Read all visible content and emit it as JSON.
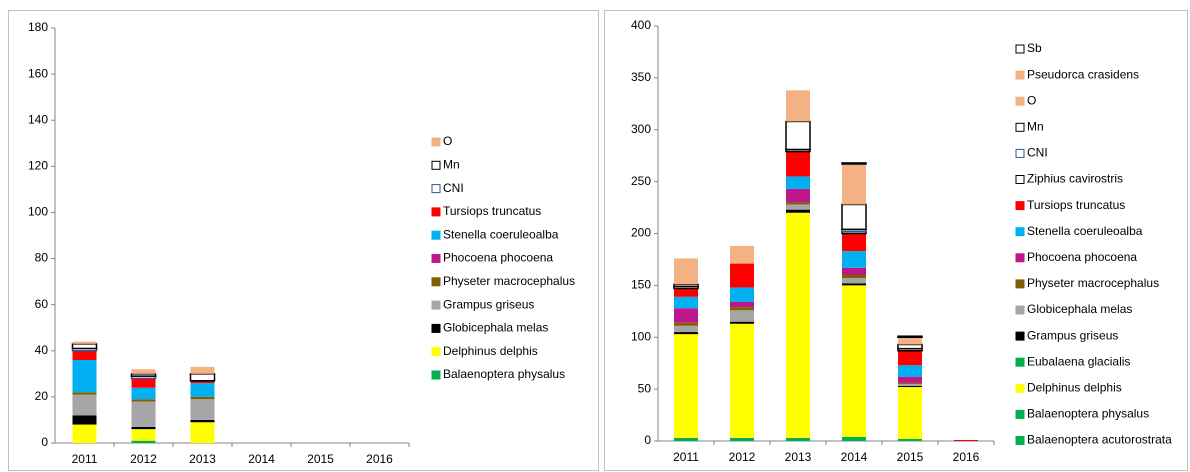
{
  "chart_data": [
    {
      "type": "stacked_bar",
      "categories": [
        "2011",
        "2012",
        "2013",
        "2014",
        "2015",
        "2016"
      ],
      "ylim": [
        0,
        180
      ],
      "yticks": [
        0,
        20,
        40,
        60,
        80,
        100,
        120,
        140,
        160,
        180
      ],
      "series": [
        {
          "name": "Balaenoptera physalus",
          "color": "#00b050",
          "values": [
            0,
            1,
            0,
            0,
            0,
            0
          ]
        },
        {
          "name": "Delphinus delphis",
          "color": "#ffff00",
          "values": [
            8,
            5,
            9,
            0,
            0,
            0
          ]
        },
        {
          "name": "Globicephala melas",
          "color": "#000000",
          "values": [
            4,
            1,
            1,
            0,
            0,
            0
          ]
        },
        {
          "name": "Grampus griseus",
          "color": "#a6a6a6",
          "values": [
            9,
            11,
            9,
            0,
            0,
            0
          ]
        },
        {
          "name": "Physeter macrocephalus",
          "color": "#7f6000",
          "values": [
            1,
            1,
            1,
            0,
            0,
            0
          ]
        },
        {
          "name": "Phocoena phocoena",
          "color": "#c0168c",
          "values": [
            0,
            0,
            0,
            0,
            0,
            0
          ]
        },
        {
          "name": "Stenella coeruleoalba",
          "color": "#00b0f0",
          "values": [
            14,
            5,
            6,
            0,
            0,
            0
          ]
        },
        {
          "name": "Tursiops truncatus",
          "color": "#ff0000",
          "values": [
            4,
            4,
            1,
            0,
            0,
            0
          ]
        },
        {
          "name": "CNI",
          "color": "#ffffff",
          "edgecolor": "#2f5597",
          "values": [
            1,
            1,
            0,
            0,
            0,
            0
          ]
        },
        {
          "name": "Mn",
          "color": "#ffffff",
          "edgecolor": "#000000",
          "values": [
            2,
            1,
            3,
            0,
            0,
            0
          ]
        },
        {
          "name": "O",
          "color": "#f4b183",
          "values": [
            1,
            2,
            3,
            0,
            0,
            0
          ]
        }
      ]
    },
    {
      "type": "stacked_bar",
      "categories": [
        "2011",
        "2012",
        "2013",
        "2014",
        "2015",
        "2016"
      ],
      "ylim": [
        0,
        400
      ],
      "yticks": [
        0,
        50,
        100,
        150,
        200,
        250,
        300,
        350,
        400
      ],
      "series": [
        {
          "name": "Balaenoptera acutorostrata",
          "color": "#00b050",
          "values": [
            3,
            3,
            3,
            4,
            2,
            0
          ]
        },
        {
          "name": "Balaenoptera physalus",
          "color": "#00b050",
          "values": [
            0,
            0,
            0,
            0,
            0,
            0
          ]
        },
        {
          "name": "Delphinus delphis",
          "color": "#ffff00",
          "values": [
            100,
            110,
            217,
            146,
            50,
            0
          ]
        },
        {
          "name": "Eubalaena glacialis",
          "color": "#00b050",
          "values": [
            0,
            0,
            0,
            0,
            0,
            0
          ]
        },
        {
          "name": "Grampus griseus",
          "color": "#000000",
          "values": [
            2,
            2,
            3,
            2,
            1,
            0
          ]
        },
        {
          "name": "Globicephala melas",
          "color": "#a6a6a6",
          "values": [
            6,
            11,
            5,
            5,
            2,
            0
          ]
        },
        {
          "name": "Physeter macrocephalus",
          "color": "#7f6000",
          "values": [
            3,
            3,
            2,
            3,
            1,
            0
          ]
        },
        {
          "name": "Phocoena phocoena",
          "color": "#c0168c",
          "values": [
            14,
            5,
            13,
            7,
            6,
            0
          ]
        },
        {
          "name": "Stenella coeruleoalba",
          "color": "#00b0f0",
          "values": [
            11,
            14,
            12,
            16,
            11,
            0
          ]
        },
        {
          "name": "Tursiops truncatus",
          "color": "#ff0000",
          "values": [
            8,
            23,
            24,
            17,
            14,
            1
          ]
        },
        {
          "name": "Ziphius cavirostris",
          "color": "#ffffff",
          "edgecolor": "#000000",
          "values": [
            2,
            0,
            2,
            2,
            2,
            0
          ]
        },
        {
          "name": "CNI",
          "color": "#ffffff",
          "edgecolor": "#2f5597",
          "values": [
            0,
            0,
            0,
            2,
            0,
            0
          ]
        },
        {
          "name": "Mn",
          "color": "#ffffff",
          "edgecolor": "#000000",
          "values": [
            2,
            0,
            27,
            24,
            4,
            0
          ]
        },
        {
          "name": "O",
          "color": "#f4b183",
          "values": [
            25,
            17,
            30,
            39,
            7,
            0
          ]
        },
        {
          "name": "Pseudorca crasidens",
          "color": "#f4b183",
          "values": [
            0,
            0,
            0,
            0,
            0,
            0
          ]
        },
        {
          "name": "Sb",
          "color": "#ffffff",
          "edgecolor": "#000000",
          "values": [
            0,
            0,
            0,
            1,
            1,
            0
          ]
        }
      ]
    }
  ]
}
